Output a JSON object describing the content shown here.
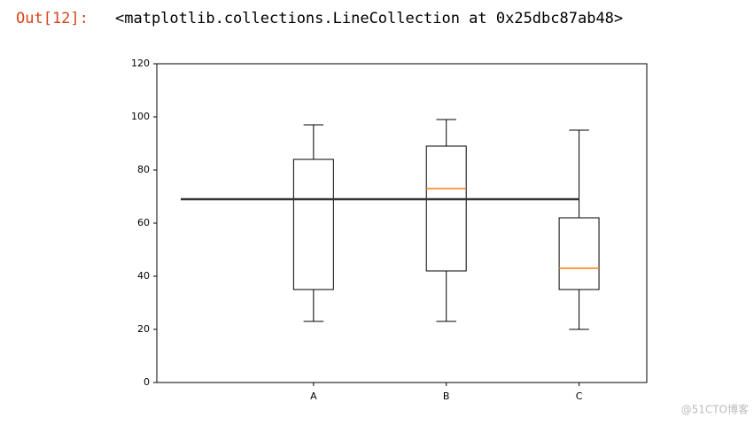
{
  "prompt": "Out[12]:",
  "output": "<matplotlib.collections.LineCollection at 0x25dbc87ab48>",
  "watermark": "@51CTO博客",
  "chart_data": {
    "type": "box",
    "xlim": [
      -0.18,
      3.51
    ],
    "ylim": [
      0,
      120
    ],
    "xticks": [
      {
        "value": 1,
        "label": "A"
      },
      {
        "value": 2,
        "label": "B"
      },
      {
        "value": 3,
        "label": "C"
      }
    ],
    "yticks": [
      0,
      20,
      40,
      60,
      80,
      100,
      120
    ],
    "box_color": "#000000",
    "median_color": "#ff7f0e",
    "boxes": [
      {
        "x": 1,
        "whisker_low": 23,
        "q1": 35,
        "median": 69,
        "q3": 84,
        "whisker_high": 97
      },
      {
        "x": 2,
        "whisker_low": 23,
        "q1": 42,
        "median": 73,
        "q3": 89,
        "whisker_high": 99
      },
      {
        "x": 3,
        "whisker_low": 20,
        "q1": 35,
        "median": 43,
        "q3": 62,
        "whisker_high": 95
      }
    ],
    "hline": {
      "y": 69,
      "xmin": 0,
      "xmax": 3,
      "color": "#333333"
    }
  }
}
